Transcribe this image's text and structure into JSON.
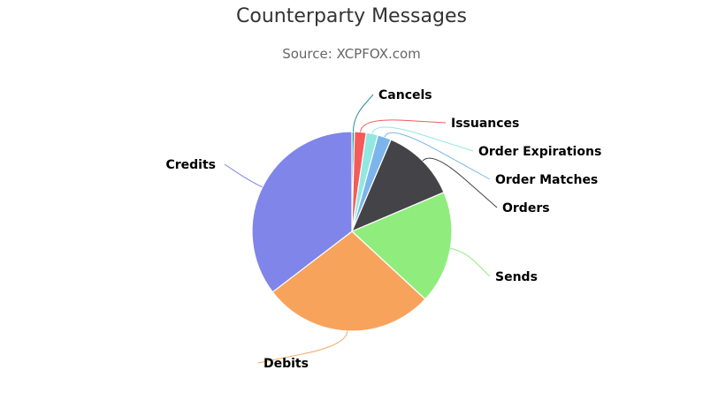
{
  "chart": {
    "title": "Counterparty Messages",
    "subtitle": "Source: XCPFOX.com"
  },
  "chart_data": {
    "type": "pie",
    "title": "Counterparty Messages",
    "subtitle": "Source: XCPFOX.com",
    "slices": [
      {
        "name": "Cancels",
        "value": 0.4,
        "color": "#2b908f"
      },
      {
        "name": "Issuances",
        "value": 1.9,
        "color": "#f45b5b"
      },
      {
        "name": "Order Expirations",
        "value": 1.9,
        "color": "#91e8e1"
      },
      {
        "name": "Order Matches",
        "value": 2.2,
        "color": "#7cb5ec"
      },
      {
        "name": "Orders",
        "value": 12.2,
        "color": "#434348"
      },
      {
        "name": "Sends",
        "value": 18.3,
        "color": "#90ed7d"
      },
      {
        "name": "Debits",
        "value": 27.7,
        "color": "#f7a35c"
      },
      {
        "name": "Credits",
        "value": 35.4,
        "color": "#8085e9"
      }
    ],
    "legend": "none"
  }
}
